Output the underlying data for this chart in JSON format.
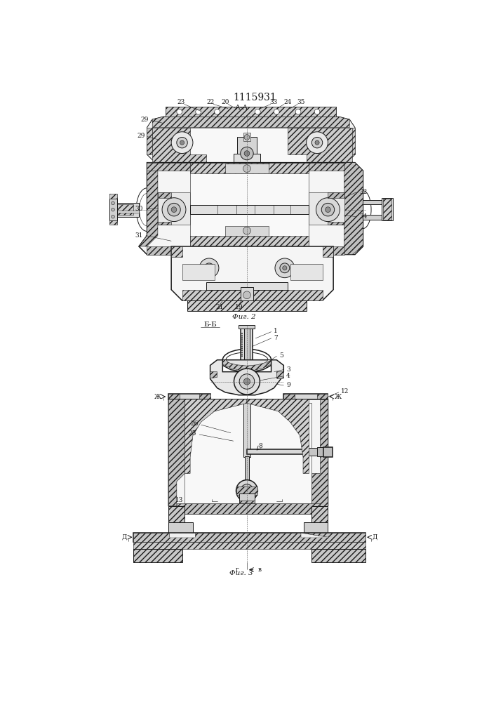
{
  "title": "1115931",
  "bg_color": "#ffffff",
  "line_color": "#1a1a1a",
  "fig2_caption": "Фиг. 2",
  "fig3_caption": "Фиг. 3",
  "fig2_section": "А-А",
  "fig3_section": "Б-Б",
  "gray_light": "#d8d8d8",
  "gray_med": "#b8b8b8",
  "gray_dark": "#888888",
  "hatch_gray": "#cccccc"
}
